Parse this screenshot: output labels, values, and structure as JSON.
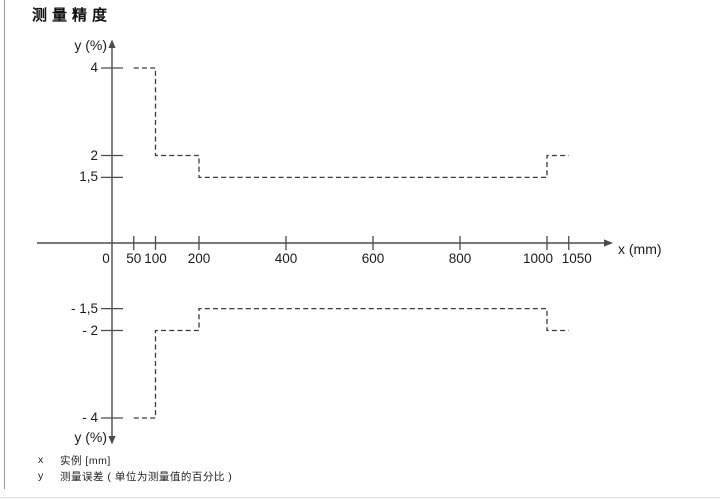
{
  "page": {
    "title": "测量精度"
  },
  "chart_data": {
    "type": "line",
    "line_style": "dashed",
    "title": "测量精度",
    "xlabel": "x (mm)",
    "ylabel": "y (%)",
    "ylabel_top": "y (%)",
    "ylabel_bottom": "y (%)",
    "x_unit": "mm",
    "y_unit": "%",
    "xlim": [
      0,
      1100
    ],
    "ylim": [
      -4.6,
      4.6
    ],
    "grid": false,
    "legend_position": "bottom-left",
    "x_ticks": [
      {
        "v": 0,
        "label": "0",
        "tick": false,
        "dx": -6
      },
      {
        "v": 50,
        "label": "50",
        "tick": true,
        "dx": 0
      },
      {
        "v": 100,
        "label": "100",
        "tick": true,
        "dx": 0
      },
      {
        "v": 200,
        "label": "200",
        "tick": true,
        "dx": 0
      },
      {
        "v": 400,
        "label": "400",
        "tick": true,
        "dx": 0
      },
      {
        "v": 600,
        "label": "600",
        "tick": true,
        "dx": 0
      },
      {
        "v": 800,
        "label": "800",
        "tick": true,
        "dx": 0
      },
      {
        "v": 1000,
        "label": "1000",
        "tick": true,
        "dx": -9
      },
      {
        "v": 1050,
        "label": "1050",
        "tick": true,
        "dx": 8
      }
    ],
    "y_ticks": [
      {
        "v": 4,
        "label": "4"
      },
      {
        "v": 2,
        "label": "2"
      },
      {
        "v": 1.5,
        "label": "1,5"
      },
      {
        "v": -1.5,
        "label": "- 1,5"
      },
      {
        "v": -2,
        "label": "- 2"
      },
      {
        "v": -4,
        "label": "- 4"
      }
    ],
    "series": [
      {
        "name": "upper-error-limit",
        "points": [
          [
            50,
            4
          ],
          [
            100,
            4
          ],
          [
            100,
            2
          ],
          [
            200,
            2
          ],
          [
            200,
            1.5
          ],
          [
            1000,
            1.5
          ],
          [
            1000,
            2
          ],
          [
            1050,
            2
          ]
        ]
      },
      {
        "name": "lower-error-limit",
        "points": [
          [
            50,
            -4
          ],
          [
            100,
            -4
          ],
          [
            100,
            -2
          ],
          [
            200,
            -2
          ],
          [
            200,
            -1.5
          ],
          [
            1000,
            -1.5
          ],
          [
            1000,
            -2
          ],
          [
            1050,
            -2
          ]
        ]
      }
    ]
  },
  "legend": {
    "rows": [
      {
        "symbol": "x",
        "text": "实例 [mm]"
      },
      {
        "symbol": "y",
        "text": "测量误差 ( 单位为测量值的百分比 )"
      }
    ]
  },
  "colors": {
    "axis": "#4c4c4c",
    "curve": "#3a3a3a",
    "text": "#1c1c1c",
    "page_border": "#9a9a9a",
    "bottom_rule": "#dcdcdc"
  }
}
